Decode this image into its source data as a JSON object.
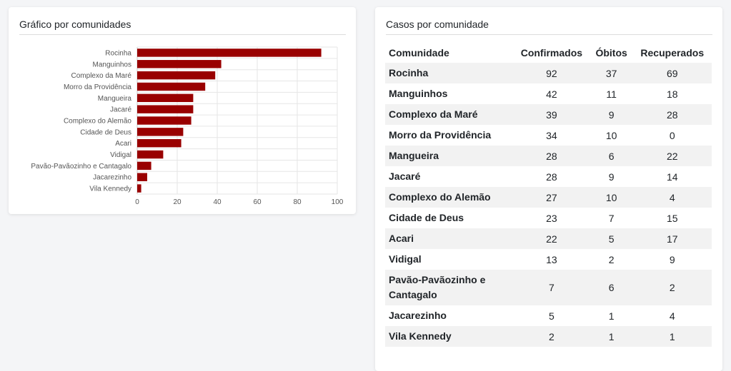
{
  "chart_card": {
    "title": "Gráfico por comunidades"
  },
  "table_card": {
    "title": "Casos por comunidade",
    "headers": [
      "Comunidade",
      "Confirmados",
      "Óbitos",
      "Recuperados"
    ],
    "rows": [
      [
        "Rocinha",
        "92",
        "37",
        "69"
      ],
      [
        "Manguinhos",
        "42",
        "11",
        "18"
      ],
      [
        "Complexo da Maré",
        "39",
        "9",
        "28"
      ],
      [
        "Morro da Providência",
        "34",
        "10",
        "0"
      ],
      [
        "Mangueira",
        "28",
        "6",
        "22"
      ],
      [
        "Jacaré",
        "28",
        "9",
        "14"
      ],
      [
        "Complexo do Alemão",
        "27",
        "10",
        "4"
      ],
      [
        "Cidade de Deus",
        "23",
        "7",
        "15"
      ],
      [
        "Acari",
        "22",
        "5",
        "17"
      ],
      [
        "Vidigal",
        "13",
        "2",
        "9"
      ],
      [
        "Pavão-Pavãozinho e Cantagalo",
        "7",
        "6",
        "2"
      ],
      [
        "Jacarezinho",
        "5",
        "1",
        "4"
      ],
      [
        "Vila Kennedy",
        "2",
        "1",
        "1"
      ]
    ]
  },
  "colors": {
    "bar": "#990000",
    "grid": "#e6e6e6",
    "axis": "#cccccc"
  },
  "chart_data": {
    "type": "bar",
    "orientation": "horizontal",
    "categories": [
      "Rocinha",
      "Manguinhos",
      "Complexo da Maré",
      "Morro da Providência",
      "Mangueira",
      "Jacaré",
      "Complexo do Alemão",
      "Cidade de Deus",
      "Acari",
      "Vidigal",
      "Pavão-Pavãozinho e Cantagalo",
      "Jacarezinho",
      "Vila Kennedy"
    ],
    "values": [
      92,
      42,
      39,
      34,
      28,
      28,
      27,
      23,
      22,
      13,
      7,
      5,
      2
    ],
    "xlim": [
      0,
      100
    ],
    "xticks": [
      "0",
      "20",
      "40",
      "60",
      "80",
      "100"
    ],
    "grid": true,
    "title": "",
    "xlabel": "",
    "ylabel": ""
  }
}
